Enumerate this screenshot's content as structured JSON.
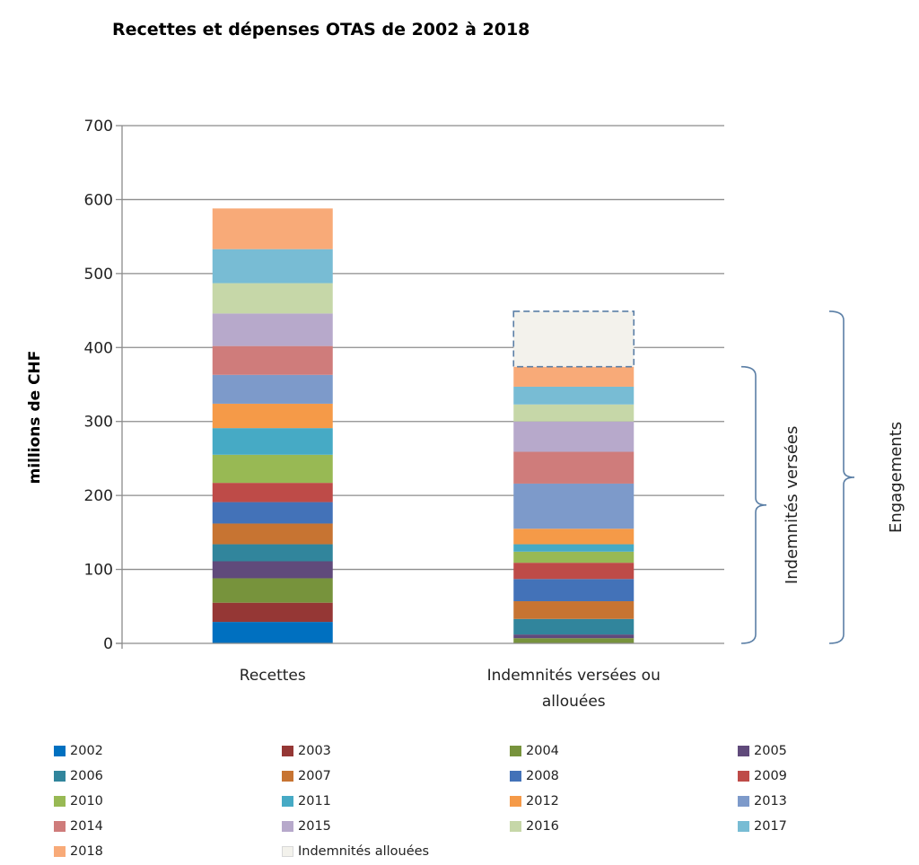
{
  "chart_data": {
    "type": "bar",
    "stacked": true,
    "title": "Recettes et dépenses OTAS de 2002 à 2018",
    "xlabel": "",
    "ylabel": "millions de CHF",
    "ylim": [
      0,
      700
    ],
    "yticks": [
      0,
      100,
      200,
      300,
      400,
      500,
      600,
      700
    ],
    "grid": true,
    "legend_position": "bottom",
    "categories": [
      "Recettes",
      "Indemnités versées ou allouées"
    ],
    "series": [
      {
        "name": "2002",
        "color": "#0070C0",
        "values": [
          29,
          0
        ]
      },
      {
        "name": "2003",
        "color": "#953735",
        "values": [
          26,
          0
        ]
      },
      {
        "name": "2004",
        "color": "#77933C",
        "values": [
          33,
          7
        ]
      },
      {
        "name": "2005",
        "color": "#604A7B",
        "values": [
          23,
          5
        ]
      },
      {
        "name": "2006",
        "color": "#31859C",
        "values": [
          23,
          21
        ]
      },
      {
        "name": "2007",
        "color": "#C77432",
        "values": [
          28,
          24
        ]
      },
      {
        "name": "2008",
        "color": "#4372B8",
        "values": [
          29,
          30
        ]
      },
      {
        "name": "2009",
        "color": "#BE4B48",
        "values": [
          26,
          22
        ]
      },
      {
        "name": "2010",
        "color": "#98B954",
        "values": [
          38,
          15
        ]
      },
      {
        "name": "2011",
        "color": "#46AAC5",
        "values": [
          36,
          10
        ]
      },
      {
        "name": "2012",
        "color": "#F59A48",
        "values": [
          33,
          21
        ]
      },
      {
        "name": "2013",
        "color": "#7D9ACA",
        "values": [
          39,
          61
        ]
      },
      {
        "name": "2014",
        "color": "#CF7C7B",
        "values": [
          39,
          43
        ]
      },
      {
        "name": "2015",
        "color": "#B7A9CB",
        "values": [
          44,
          41
        ]
      },
      {
        "name": "2016",
        "color": "#C6D7A8",
        "values": [
          41,
          23
        ]
      },
      {
        "name": "2017",
        "color": "#78BCD4",
        "values": [
          46,
          24
        ]
      },
      {
        "name": "2018",
        "color": "#F8AA78",
        "values": [
          55,
          27
        ]
      },
      {
        "name": "Indemnités allouées",
        "color": "#F3F2EC",
        "values": [
          0,
          75
        ],
        "dashed_outline": true
      }
    ],
    "annotations": [
      {
        "text": "Indemnités versées",
        "type": "brace",
        "range": [
          0,
          374
        ]
      },
      {
        "text": "Engagements",
        "type": "brace",
        "range": [
          0,
          449
        ]
      }
    ]
  }
}
